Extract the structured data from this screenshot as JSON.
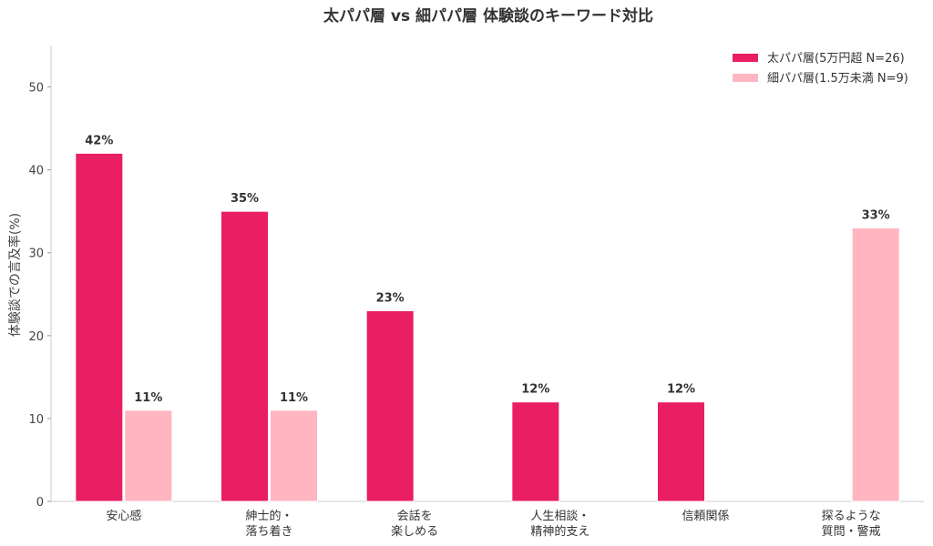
{
  "chart_data": {
    "type": "bar",
    "title": "太パパ層 vs 細パパ層 体験談のキーワード対比",
    "xlabel": "",
    "ylabel": "体験談での言及率(%)",
    "ylim": [
      0,
      55
    ],
    "yticks": [
      0,
      10,
      20,
      30,
      40,
      50
    ],
    "grid": false,
    "legend_position": "top-right",
    "categories": [
      [
        "安心感"
      ],
      [
        "紳士的・",
        "落ち着き"
      ],
      [
        "会話を",
        "楽しめる"
      ],
      [
        "人生相談・",
        "精神的支え"
      ],
      [
        "信頼関係"
      ],
      [
        "探るような",
        "質問・警戒"
      ]
    ],
    "series": [
      {
        "name": "太パパ層(5万円超 N=26)",
        "color": "#e91e63",
        "values": [
          42,
          35,
          23,
          12,
          12,
          null
        ],
        "labels": [
          "42%",
          "35%",
          "23%",
          "12%",
          "12%",
          ""
        ]
      },
      {
        "name": "細パパ層(1.5万未満 N=9)",
        "color": "#ffb6c1",
        "values": [
          11,
          11,
          null,
          null,
          null,
          33
        ],
        "labels": [
          "11%",
          "11%",
          "",
          "",
          "",
          "33%"
        ]
      }
    ]
  }
}
